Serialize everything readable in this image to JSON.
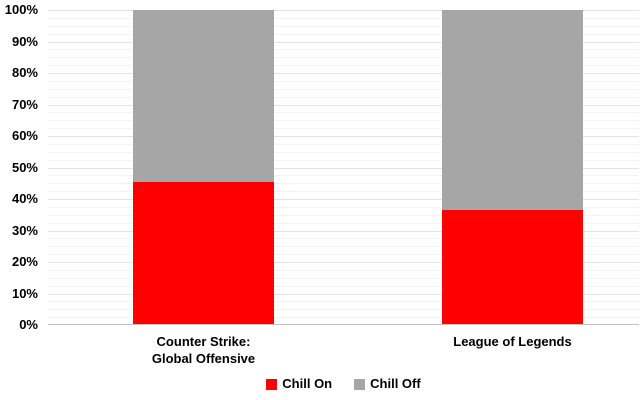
{
  "chart_data": {
    "type": "bar",
    "stacked": true,
    "orientation": "vertical",
    "title": "",
    "categories": [
      [
        "Counter Strike:",
        "Global Offensive"
      ],
      [
        "League of Legends"
      ]
    ],
    "series": [
      {
        "name": "Chill On",
        "color": "#ff0000",
        "values": [
          45.5,
          36.6
        ]
      },
      {
        "name": "Chill Off",
        "color": "#a6a6a6",
        "values": [
          54.5,
          63.4
        ]
      }
    ],
    "ylim": [
      0,
      100
    ],
    "y_tick_values": [
      0,
      10,
      20,
      30,
      40,
      50,
      60,
      70,
      80,
      90,
      100
    ],
    "y_tick_labels": [
      "0%",
      "10%",
      "20%",
      "30%",
      "40%",
      "50%",
      "60%",
      "70%",
      "80%",
      "90%",
      "100%"
    ],
    "minor_gridline_step": 2.5,
    "grid": true,
    "legend_position": "bottom",
    "xlabel": "",
    "ylabel": ""
  }
}
